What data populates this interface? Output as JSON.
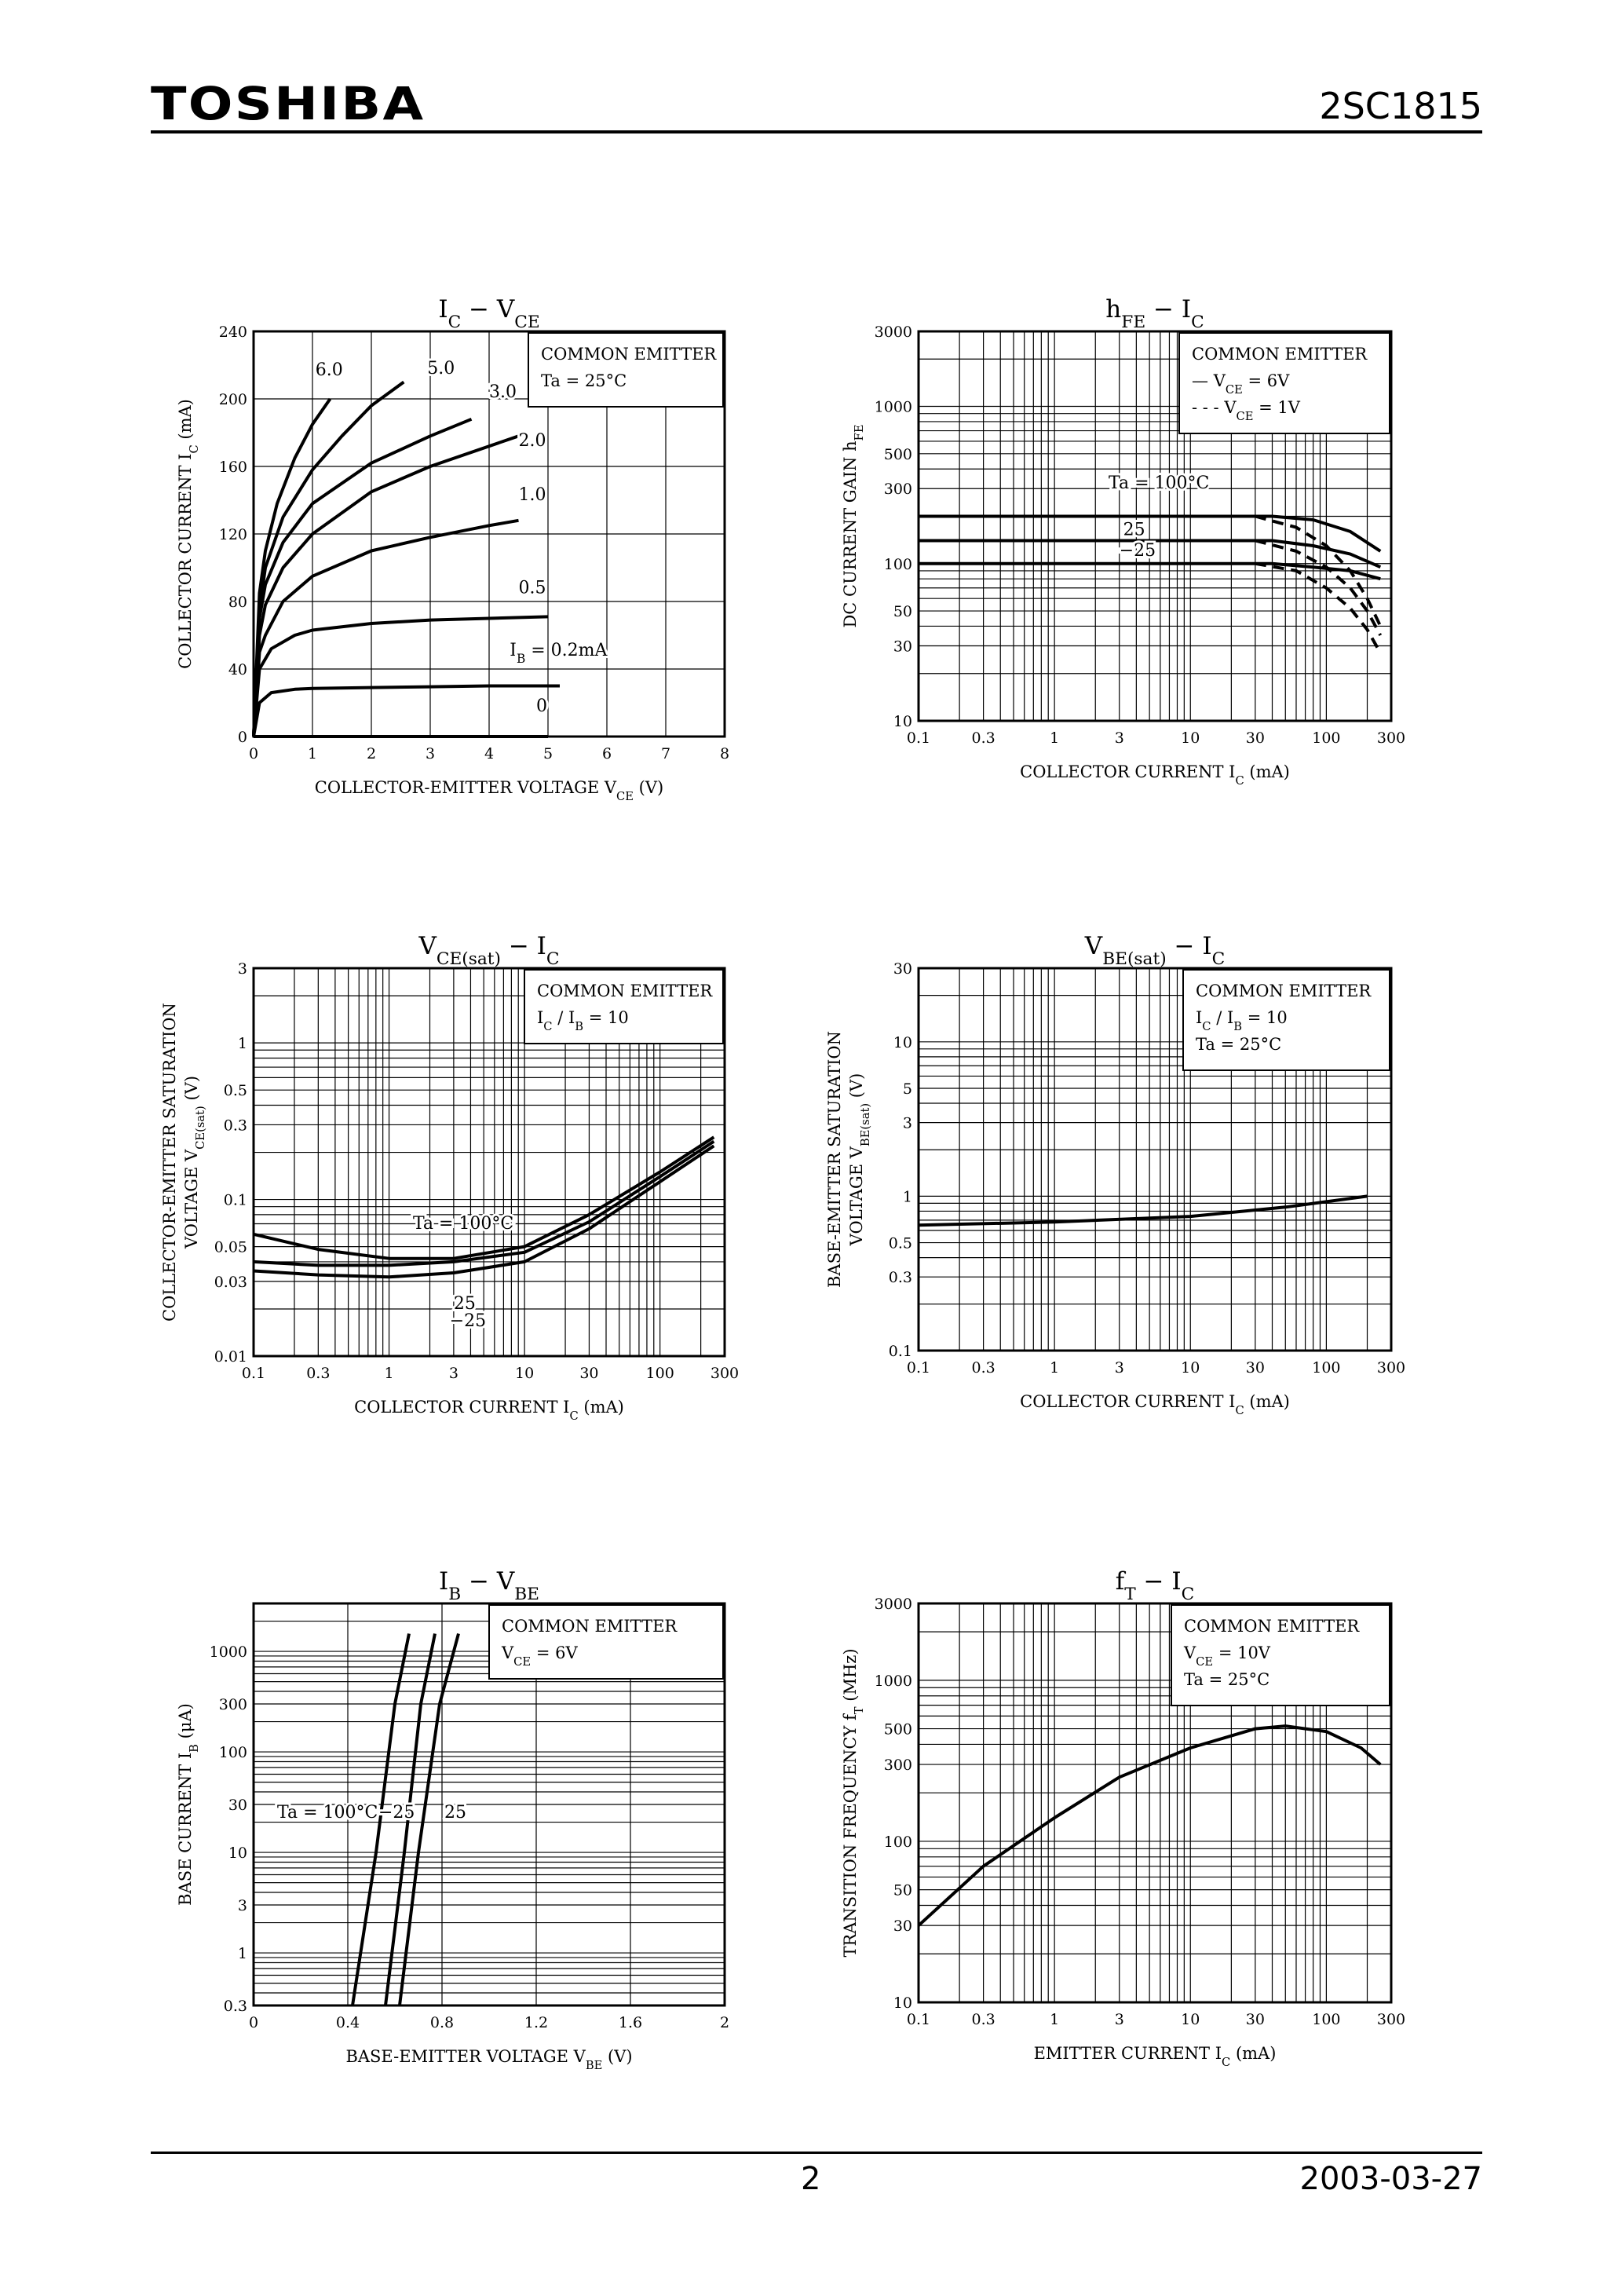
{
  "header": {
    "logo": "TOSHIBA",
    "part_number": "2SC1815"
  },
  "footer": {
    "page_number": "2",
    "date": "2003-03-27"
  },
  "chart_data": [
    {
      "id": "ic_vce",
      "type": "line",
      "xscale": "linear",
      "yscale": "linear",
      "title": [
        [
          "I",
          "C",
          ""
        ],
        [
          " − V",
          "CE",
          ""
        ]
      ],
      "xlabel": [
        [
          "COLLECTOR-EMITTER VOLTAGE   V",
          "CE",
          "   (V)"
        ]
      ],
      "ylabel": [
        [
          "COLLECTOR CURRENT   I",
          "C",
          "   (mA)"
        ]
      ],
      "xlim": [
        0,
        8
      ],
      "ylim": [
        0,
        240
      ],
      "xticks": [
        0,
        1,
        2,
        3,
        4,
        5,
        6,
        7,
        8
      ],
      "yticks": [
        0,
        40,
        80,
        120,
        160,
        200,
        240
      ],
      "legend": [
        [
          [
            "COMMON EMITTER"
          ]
        ],
        [
          [
            "Ta = 25°C"
          ]
        ]
      ],
      "series": [
        {
          "name": "6.0",
          "style": "solid",
          "x": [
            0,
            0.1,
            0.2,
            0.4,
            0.7,
            1.0,
            1.3
          ],
          "y": [
            0,
            85,
            110,
            138,
            165,
            185,
            200
          ]
        },
        {
          "name": "5.0",
          "style": "solid",
          "x": [
            0,
            0.1,
            0.2,
            0.5,
            1.0,
            1.5,
            2.0,
            2.55
          ],
          "y": [
            0,
            75,
            100,
            130,
            158,
            178,
            196,
            210
          ]
        },
        {
          "name": "3.0",
          "style": "solid",
          "x": [
            0,
            0.1,
            0.2,
            0.5,
            1.0,
            2.0,
            3.0,
            3.7
          ],
          "y": [
            0,
            70,
            90,
            115,
            138,
            162,
            178,
            188
          ]
        },
        {
          "name": "2.0",
          "style": "solid",
          "x": [
            0,
            0.1,
            0.2,
            0.5,
            1.0,
            2.0,
            3.0,
            4.5
          ],
          "y": [
            0,
            60,
            78,
            100,
            120,
            145,
            160,
            178
          ]
        },
        {
          "name": "1.0",
          "style": "solid",
          "x": [
            0,
            0.1,
            0.2,
            0.5,
            1.0,
            2.0,
            3.0,
            4.0,
            4.5
          ],
          "y": [
            0,
            50,
            60,
            80,
            95,
            110,
            118,
            125,
            128
          ]
        },
        {
          "name": "0.5",
          "style": "solid",
          "x": [
            0,
            0.1,
            0.3,
            0.7,
            1.0,
            2.0,
            3.0,
            4.0,
            5.0
          ],
          "y": [
            0,
            40,
            52,
            60,
            63,
            67,
            69,
            70,
            71
          ]
        },
        {
          "name": "0.2",
          "style": "solid",
          "x": [
            0,
            0.1,
            0.3,
            0.7,
            1.0,
            2.0,
            3.0,
            4.0,
            5.2
          ],
          "y": [
            0,
            20,
            26,
            28,
            28.5,
            29,
            29.5,
            30,
            30
          ]
        },
        {
          "name": "0",
          "style": "solid",
          "x": [
            0,
            5
          ],
          "y": [
            0,
            0
          ]
        }
      ],
      "annotations": [
        {
          "segs": [
            [
              "6.0"
            ]
          ],
          "x": 1.05,
          "y": 214
        },
        {
          "segs": [
            [
              "5.0"
            ]
          ],
          "x": 2.95,
          "y": 215
        },
        {
          "segs": [
            [
              "3.0"
            ]
          ],
          "x": 4.0,
          "y": 201
        },
        {
          "segs": [
            [
              "2.0"
            ]
          ],
          "x": 4.5,
          "y": 172
        },
        {
          "segs": [
            [
              "1.0"
            ]
          ],
          "x": 4.5,
          "y": 140
        },
        {
          "segs": [
            [
              "0.5"
            ]
          ],
          "x": 4.5,
          "y": 85
        },
        {
          "segs": [
            [
              "I",
              "B",
              ""
            ],
            [
              " = 0.2mA"
            ]
          ],
          "x": 4.35,
          "y": 48
        },
        {
          "segs": [
            [
              "0"
            ]
          ],
          "x": 4.8,
          "y": 15
        }
      ]
    },
    {
      "id": "hfe_ic",
      "type": "line",
      "xscale": "log",
      "yscale": "log",
      "title": [
        [
          "h",
          "FE",
          ""
        ],
        [
          " − I",
          "C",
          ""
        ]
      ],
      "xlabel": [
        [
          "COLLECTOR CURRENT   I",
          "C",
          "   (mA)"
        ]
      ],
      "ylabel": [
        [
          "DC CURRENT GAIN   h",
          "FE",
          ""
        ]
      ],
      "xlim": [
        0.1,
        300
      ],
      "ylim": [
        10,
        3000
      ],
      "xticks": [
        0.1,
        0.3,
        1,
        3,
        10,
        30,
        100,
        300
      ],
      "yticks": [
        10,
        30,
        50,
        100,
        300,
        500,
        1000,
        3000
      ],
      "legend": [
        [
          [
            "COMMON EMITTER"
          ]
        ],
        [
          [
            "— ",
            "",
            ""
          ],
          [
            "V",
            "CE",
            ""
          ],
          [
            " = 6V"
          ]
        ],
        [
          [
            "- - - ",
            "",
            ""
          ],
          [
            "V",
            "CE",
            ""
          ],
          [
            " = 1V"
          ]
        ]
      ],
      "series": [
        {
          "name": "Ta=100°C VCE=6V",
          "style": "solid",
          "x": [
            0.1,
            1,
            10,
            40,
            80,
            150,
            250
          ],
          "y": [
            200,
            200,
            200,
            200,
            190,
            160,
            120
          ]
        },
        {
          "name": "Ta=25°C VCE=6V",
          "style": "solid",
          "x": [
            0.1,
            1,
            10,
            40,
            80,
            150,
            250
          ],
          "y": [
            140,
            140,
            140,
            140,
            130,
            115,
            95
          ]
        },
        {
          "name": "Ta=-25°C VCE=6V",
          "style": "solid",
          "x": [
            0.1,
            1,
            10,
            40,
            80,
            150,
            250
          ],
          "y": [
            100,
            100,
            100,
            100,
            95,
            90,
            80
          ]
        },
        {
          "name": "Ta=100°C VCE=1V",
          "style": "dashed",
          "x": [
            30,
            60,
            100,
            150,
            200,
            250
          ],
          "y": [
            200,
            170,
            130,
            90,
            60,
            40
          ]
        },
        {
          "name": "Ta=25°C VCE=1V",
          "style": "dashed",
          "x": [
            30,
            60,
            100,
            150,
            200,
            250
          ],
          "y": [
            140,
            120,
            95,
            70,
            50,
            35
          ]
        },
        {
          "name": "Ta=-25°C VCE=1V",
          "style": "dashed",
          "x": [
            30,
            60,
            100,
            150,
            200,
            250
          ],
          "y": [
            100,
            90,
            70,
            52,
            38,
            27
          ]
        }
      ],
      "annotations": [
        {
          "segs": [
            [
              "Ta = 100°C"
            ]
          ],
          "x": 2.5,
          "y": 300
        },
        {
          "segs": [
            [
              "25"
            ]
          ],
          "x": 3.2,
          "y": 152
        },
        {
          "segs": [
            [
              "−25"
            ]
          ],
          "x": 3.0,
          "y": 112
        }
      ]
    },
    {
      "id": "vcesat_ic",
      "type": "line",
      "xscale": "log",
      "yscale": "log",
      "title": [
        [
          "V",
          "CE(sat)",
          ""
        ],
        [
          " − I",
          "C",
          ""
        ]
      ],
      "xlabel": [
        [
          "COLLECTOR CURRENT   I",
          "C",
          "   (mA)"
        ]
      ],
      "ylabel": [
        [
          "COLLECTOR-EMITTER SATURATION"
        ]
      ],
      "ylabel2": [
        [
          "VOLTAGE   V",
          "CE(sat)",
          "   (V)"
        ]
      ],
      "xlim": [
        0.1,
        300
      ],
      "ylim": [
        0.01,
        3
      ],
      "xticks": [
        0.1,
        0.3,
        1,
        3,
        10,
        30,
        100,
        300
      ],
      "yticks": [
        0.01,
        0.03,
        0.05,
        0.1,
        0.3,
        0.5,
        1,
        3
      ],
      "legend": [
        [
          [
            "COMMON EMITTER"
          ]
        ],
        [
          [
            "I",
            "C",
            ""
          ],
          [
            " / I",
            "B",
            ""
          ],
          [
            " = 10"
          ]
        ]
      ],
      "series": [
        {
          "name": "Ta=100°C",
          "style": "solid",
          "x": [
            0.1,
            0.3,
            1,
            3,
            10,
            30,
            100,
            250
          ],
          "y": [
            0.06,
            0.048,
            0.042,
            0.042,
            0.05,
            0.08,
            0.15,
            0.25
          ]
        },
        {
          "name": "Ta=25°C",
          "style": "solid",
          "x": [
            0.1,
            0.3,
            1,
            3,
            10,
            30,
            100,
            250
          ],
          "y": [
            0.04,
            0.038,
            0.038,
            0.04,
            0.046,
            0.072,
            0.14,
            0.235
          ]
        },
        {
          "name": "Ta=-25°C",
          "style": "solid",
          "x": [
            0.1,
            0.3,
            1,
            3,
            10,
            30,
            100,
            250
          ],
          "y": [
            0.035,
            0.033,
            0.032,
            0.034,
            0.04,
            0.065,
            0.13,
            0.22
          ]
        }
      ],
      "annotations": [
        {
          "segs": [
            [
              "Ta = 100°C"
            ]
          ],
          "x": 1.5,
          "y": 0.065
        },
        {
          "segs": [
            [
              "25"
            ]
          ],
          "x": 3,
          "y": 0.02
        },
        {
          "segs": [
            [
              "−25"
            ]
          ],
          "x": 2.8,
          "y": 0.0155
        }
      ]
    },
    {
      "id": "vbesat_ic",
      "type": "line",
      "xscale": "log",
      "yscale": "log",
      "title": [
        [
          "V",
          "BE(sat)",
          ""
        ],
        [
          " − I",
          "C",
          ""
        ]
      ],
      "xlabel": [
        [
          "COLLECTOR CURRENT   I",
          "C",
          "   (mA)"
        ]
      ],
      "ylabel": [
        [
          "BASE-EMITTER SATURATION"
        ]
      ],
      "ylabel2": [
        [
          "VOLTAGE   V",
          "BE(sat)",
          "   (V)"
        ]
      ],
      "xlim": [
        0.1,
        300
      ],
      "ylim": [
        0.1,
        30
      ],
      "xticks": [
        0.1,
        0.3,
        1,
        3,
        10,
        30,
        100,
        300
      ],
      "yticks": [
        0.1,
        0.3,
        0.5,
        1,
        3,
        5,
        10,
        30
      ],
      "legend": [
        [
          [
            "COMMON EMITTER"
          ]
        ],
        [
          [
            "I",
            "C",
            ""
          ],
          [
            " / I",
            "B",
            ""
          ],
          [
            " = 10"
          ]
        ],
        [
          [
            "Ta = 25°C"
          ]
        ]
      ],
      "series": [
        {
          "name": "Ta=25°C",
          "style": "solid",
          "x": [
            0.1,
            1,
            10,
            50,
            200
          ],
          "y": [
            0.65,
            0.68,
            0.74,
            0.85,
            1.0
          ]
        }
      ],
      "annotations": []
    },
    {
      "id": "ib_vbe",
      "type": "line",
      "xscale": "linear",
      "yscale": "log",
      "title": [
        [
          "I",
          "B",
          ""
        ],
        [
          " − V",
          "BE",
          ""
        ]
      ],
      "xlabel": [
        [
          "BASE-EMITTER VOLTAGE   V",
          "BE",
          "   (V)"
        ]
      ],
      "ylabel": [
        [
          "BASE CURRENT   I",
          "B",
          "   (μA)"
        ]
      ],
      "xlim": [
        0,
        2.0
      ],
      "ylim": [
        0.3,
        3000
      ],
      "xticks": [
        0,
        0.4,
        0.8,
        1.2,
        1.6,
        2.0
      ],
      "yticks": [
        0.3,
        1,
        3,
        10,
        30,
        100,
        300,
        1000
      ],
      "legend": [
        [
          [
            "COMMON EMITTER"
          ]
        ],
        [
          [
            "V",
            "CE",
            ""
          ],
          [
            " = 6V"
          ]
        ]
      ],
      "series": [
        {
          "name": "Ta=100°C",
          "style": "solid",
          "x": [
            0.42,
            0.52,
            0.6,
            0.66
          ],
          "y": [
            0.3,
            10,
            300,
            1500
          ]
        },
        {
          "name": "Ta=25°C",
          "style": "solid",
          "x": [
            0.56,
            0.64,
            0.71,
            0.77
          ],
          "y": [
            0.3,
            10,
            300,
            1500
          ]
        },
        {
          "name": "Ta=-25°C",
          "style": "solid",
          "x": [
            0.62,
            0.7,
            0.79,
            0.87
          ],
          "y": [
            0.3,
            10,
            300,
            1500
          ]
        }
      ],
      "annotations": [
        {
          "segs": [
            [
              "Ta = 100°C"
            ]
          ],
          "x": 0.1,
          "y": 22
        },
        {
          "segs": [
            [
              "−25"
            ]
          ],
          "x": 0.53,
          "y": 22
        },
        {
          "segs": [
            [
              "25"
            ]
          ],
          "x": 0.81,
          "y": 22
        }
      ]
    },
    {
      "id": "ft_ic",
      "type": "line",
      "xscale": "log",
      "yscale": "log",
      "title": [
        [
          "f",
          "T",
          ""
        ],
        [
          " − I",
          "C",
          ""
        ]
      ],
      "xlabel": [
        [
          "EMITTER CURRENT   I",
          "C",
          "   (mA)"
        ]
      ],
      "ylabel": [
        [
          "TRANSITION FREQUENCY   f",
          "T",
          "   (MHz)"
        ]
      ],
      "xlim": [
        0.1,
        300
      ],
      "ylim": [
        10,
        3000
      ],
      "xticks": [
        0.1,
        0.3,
        1,
        3,
        10,
        30,
        100,
        300
      ],
      "yticks": [
        10,
        30,
        50,
        100,
        300,
        500,
        1000,
        3000
      ],
      "legend": [
        [
          [
            "COMMON EMITTER"
          ]
        ],
        [
          [
            "V",
            "CE",
            ""
          ],
          [
            " = 10V"
          ]
        ],
        [
          [
            "Ta = 25°C"
          ]
        ]
      ],
      "series": [
        {
          "name": "Ta=25°C",
          "style": "solid",
          "x": [
            0.1,
            0.3,
            1,
            3,
            10,
            30,
            50,
            100,
            180,
            250
          ],
          "y": [
            30,
            70,
            140,
            250,
            380,
            500,
            520,
            480,
            380,
            300
          ]
        }
      ],
      "annotations": []
    }
  ]
}
